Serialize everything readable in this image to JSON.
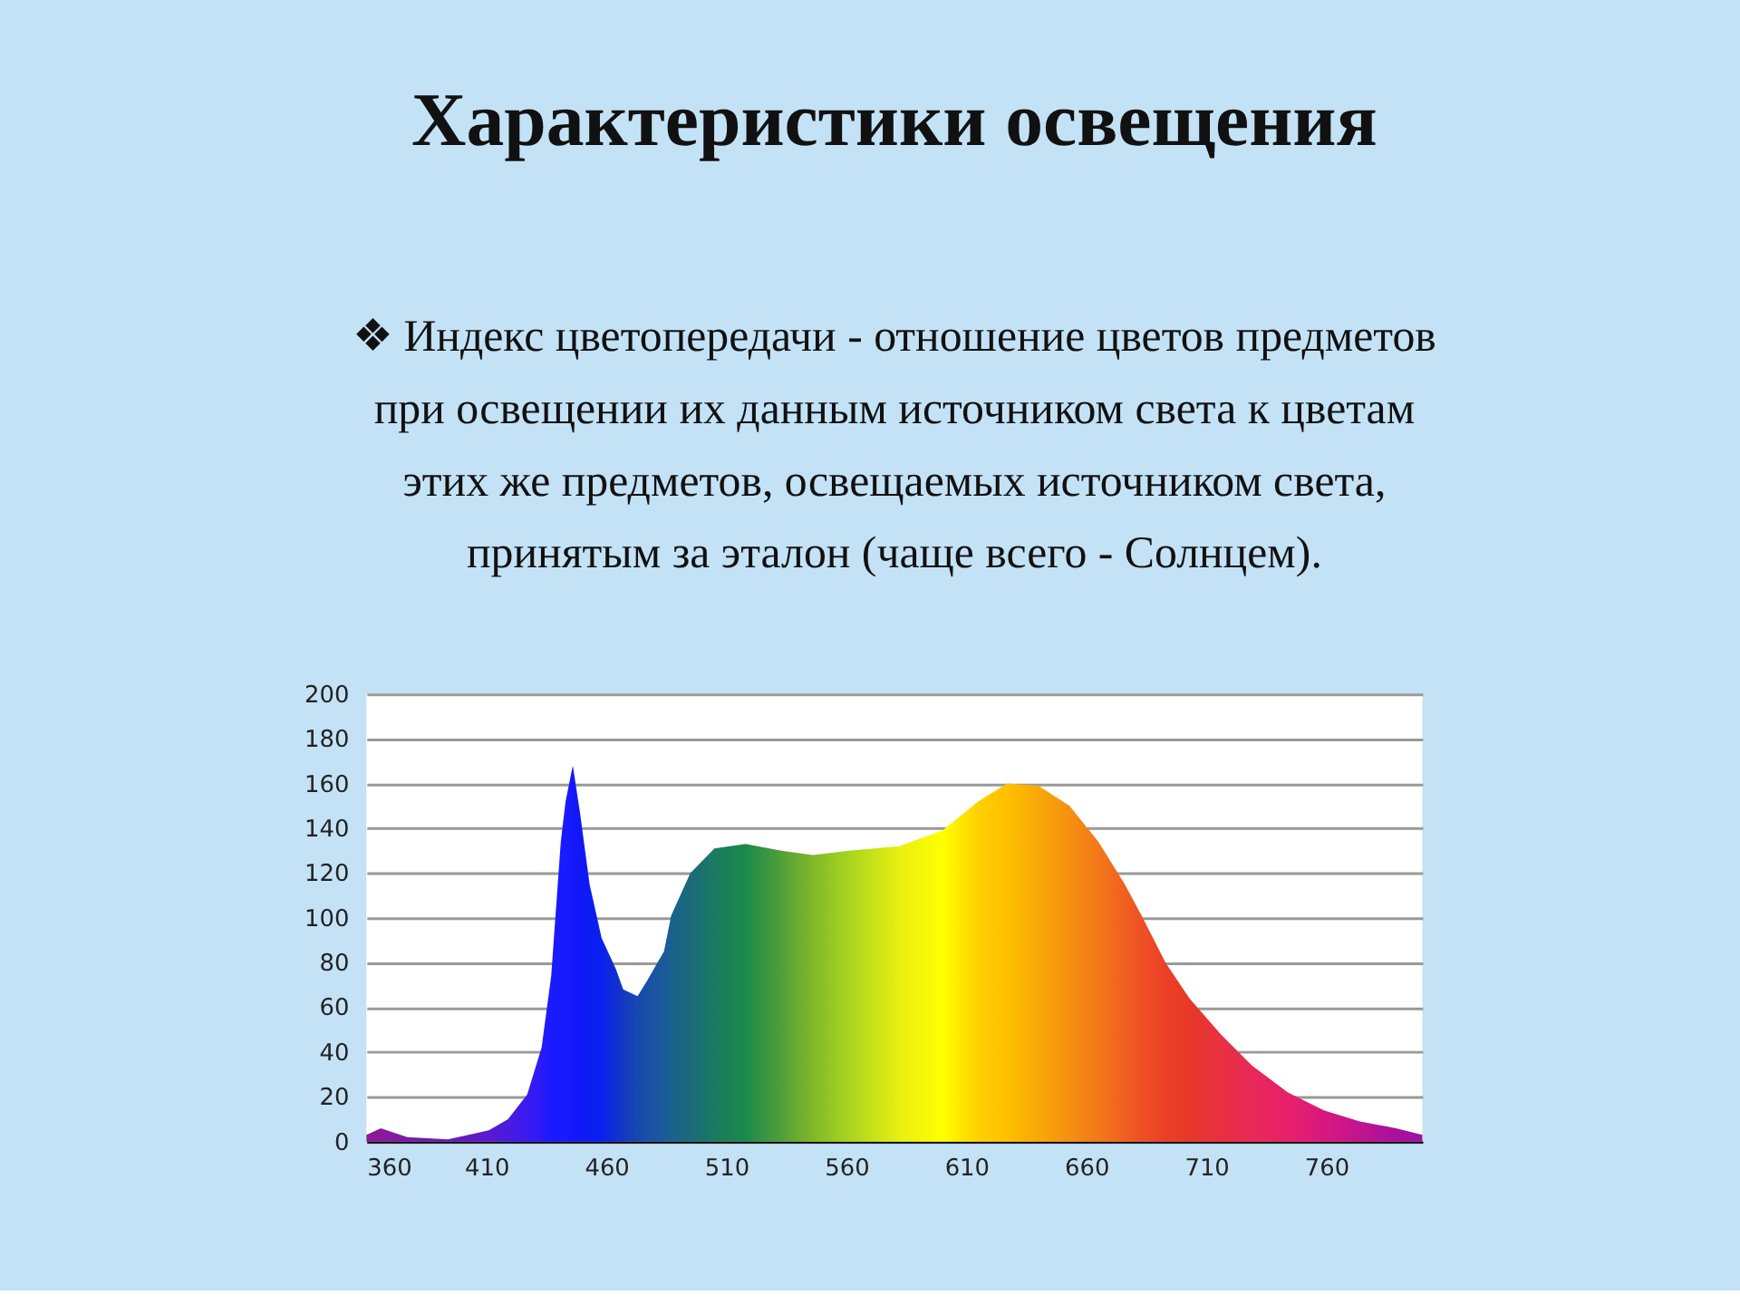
{
  "chart_data": {
    "type": "area",
    "title": "Характеристики освещения",
    "subtitle": [
      "❖ Индекс цветопередачи - отношение цветов предметов",
      "при освещении их данным источником света к цветам",
      "этих же предметов, освещаемых источником света,",
      "принятым за эталон (чаще всего - Солнцем)."
    ],
    "x": [
      360,
      366,
      377,
      394,
      411,
      419,
      427,
      433,
      437,
      441,
      443,
      446,
      449,
      453,
      458,
      464,
      467,
      473,
      477,
      484,
      487,
      495,
      505,
      518,
      533,
      546,
      561,
      582,
      600,
      615,
      627,
      640,
      653,
      665,
      676,
      683,
      693,
      703,
      716,
      729,
      744,
      759,
      774,
      789,
      800
    ],
    "values": [
      3,
      6,
      2,
      1,
      5,
      10,
      21,
      42,
      74,
      134,
      152,
      168,
      147,
      115,
      91,
      77,
      68,
      65,
      72,
      85,
      101,
      120,
      131,
      133,
      130,
      128,
      130,
      132,
      139,
      152,
      160,
      159,
      150,
      134,
      115,
      101,
      80,
      64,
      48,
      34,
      22,
      14,
      9,
      6,
      3
    ],
    "colors": [
      "#8b1a9a",
      "#8b1a9a",
      "#7a1aa8",
      "#6a1ab8",
      "#5a1ad0",
      "#4a1ae0",
      "#3a1af0",
      "#2a1af8",
      "#1a1aff",
      "#1a1aff",
      "#1a1aff",
      "#1418fa",
      "#1018f5",
      "#0c1cf2",
      "#0a20f0",
      "#1030d0",
      "#1438c0",
      "#1848b0",
      "#1a50a5",
      "#1a5a9a",
      "#1a6090",
      "#1a6a7a",
      "#1a7a60",
      "#1a8a4a",
      "#50a038",
      "#80b828",
      "#a8d420",
      "#e8f010",
      "#ffff00",
      "#ffd000",
      "#ffc000",
      "#f8a808",
      "#f59010",
      "#f27818",
      "#f06020",
      "#ee5024",
      "#ea4026",
      "#e83828",
      "#e83040",
      "#e82858",
      "#e8206a",
      "#d81880",
      "#c01490",
      "#aa10a0",
      "#a010a0"
    ],
    "xlim": [
      360,
      800
    ],
    "xticks": [
      360,
      410,
      460,
      510,
      560,
      610,
      660,
      710,
      760
    ],
    "ylim": [
      0,
      200
    ],
    "yticks": [
      0,
      20,
      40,
      60,
      80,
      100,
      120,
      140,
      160,
      180,
      200
    ],
    "grid": "y"
  }
}
